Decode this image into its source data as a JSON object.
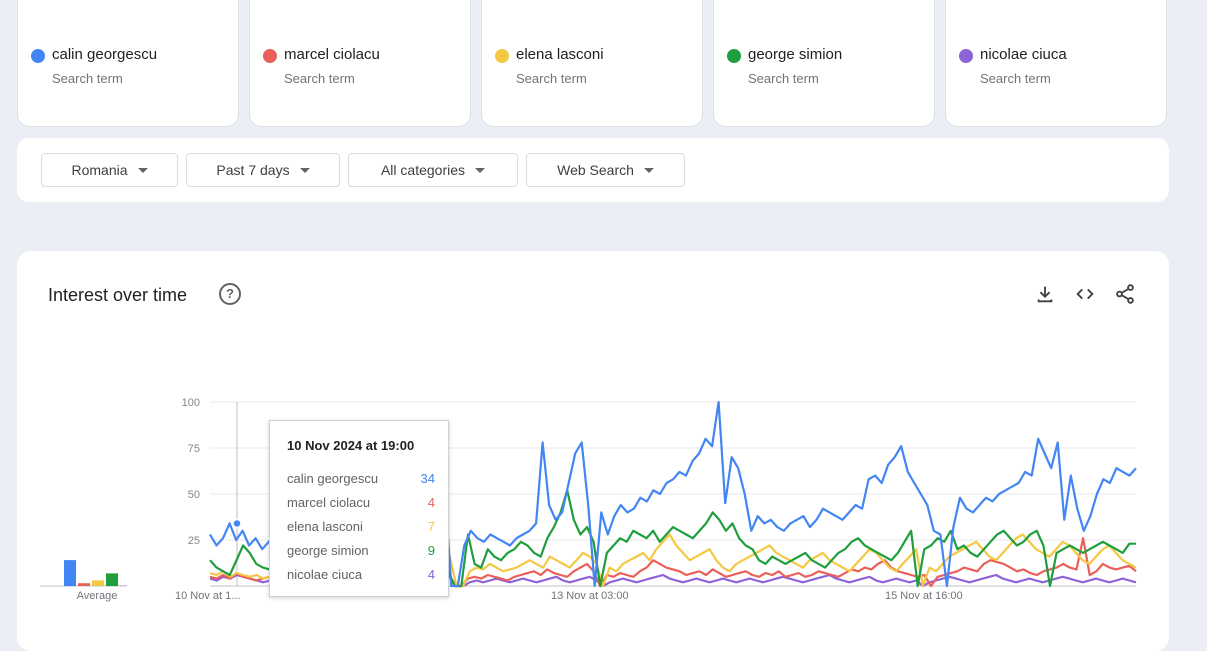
{
  "terms": [
    {
      "name": "calin georgescu",
      "sub": "Search term",
      "color": "#4285f4"
    },
    {
      "name": "marcel ciolacu",
      "sub": "Search term",
      "color": "#ea6059"
    },
    {
      "name": "elena lasconi",
      "sub": "Search term",
      "color": "#f4c842"
    },
    {
      "name": "george simion",
      "sub": "Search term",
      "color": "#1e9e3c"
    },
    {
      "name": "nicolae ciuca",
      "sub": "Search term",
      "color": "#8d63d6"
    }
  ],
  "filters": {
    "region": "Romania",
    "period": "Past 7 days",
    "category": "All categories",
    "search_type": "Web Search"
  },
  "panel": {
    "title": "Interest over time",
    "help": "?",
    "actions": [
      "download-icon",
      "embed-icon",
      "share-icon"
    ]
  },
  "average_chart": {
    "label": "Average",
    "values": [
      37,
      4,
      8,
      18,
      0.5
    ]
  },
  "chart_data": {
    "type": "line",
    "ylim": [
      0,
      100
    ],
    "yticks": [
      "100",
      "75",
      "50",
      "25"
    ],
    "xticks": [
      "10 Nov at 1...",
      "13 Nov at 03:00",
      "15 Nov at 16:00"
    ],
    "series": [
      {
        "name": "calin georgescu",
        "color": "#4285f4",
        "values": [
          28,
          22,
          26,
          34,
          25,
          30,
          22,
          26,
          20,
          24,
          28,
          26,
          30,
          34,
          38,
          32,
          36,
          26,
          28,
          22,
          20,
          22,
          24,
          22,
          26,
          30,
          28,
          24,
          30,
          34,
          36,
          40,
          38,
          36,
          40,
          48,
          53,
          0,
          0,
          22,
          30,
          26,
          24,
          28,
          26,
          24,
          22,
          26,
          28,
          30,
          34,
          78,
          44,
          36,
          40,
          56,
          72,
          78,
          44,
          0,
          40,
          28,
          38,
          44,
          40,
          42,
          48,
          46,
          52,
          50,
          56,
          58,
          62,
          60,
          68,
          72,
          80,
          76,
          100,
          45,
          70,
          64,
          50,
          30,
          38,
          34,
          36,
          32,
          30,
          34,
          36,
          38,
          32,
          36,
          42,
          40,
          38,
          36,
          40,
          44,
          42,
          58,
          60,
          56,
          66,
          70,
          76,
          62,
          56,
          50,
          44,
          30,
          28,
          0,
          32,
          48,
          42,
          40,
          44,
          48,
          46,
          50,
          52,
          54,
          56,
          62,
          60,
          80,
          72,
          64,
          78,
          36,
          60,
          42,
          30,
          38,
          50,
          58,
          56,
          64,
          62,
          60,
          64
        ]
      },
      {
        "name": "marcel ciolacu",
        "color": "#ea6059",
        "values": [
          5,
          4,
          6,
          4,
          7,
          5,
          4,
          3,
          4,
          5,
          4,
          6,
          5,
          4,
          3,
          5,
          4,
          6,
          5,
          4,
          3,
          4,
          5,
          4,
          6,
          5,
          4,
          5,
          6,
          5,
          4,
          3,
          5,
          4,
          6,
          5,
          8,
          0,
          0,
          4,
          5,
          4,
          6,
          5,
          4,
          3,
          5,
          6,
          7,
          8,
          6,
          9,
          7,
          6,
          5,
          8,
          10,
          12,
          8,
          0,
          6,
          5,
          7,
          6,
          5,
          8,
          10,
          14,
          12,
          10,
          9,
          8,
          6,
          7,
          8,
          6,
          9,
          7,
          5,
          6,
          7,
          8,
          6,
          5,
          7,
          6,
          8,
          5,
          6,
          7,
          5,
          6,
          8,
          7,
          6,
          5,
          7,
          9,
          8,
          10,
          9,
          12,
          14,
          10,
          8,
          7,
          6,
          5,
          6,
          0,
          5,
          6,
          7,
          8,
          10,
          9,
          8,
          12,
          14,
          13,
          12,
          10,
          8,
          9,
          7,
          6,
          8,
          9,
          10,
          12,
          10,
          9,
          26,
          6,
          8,
          12,
          10,
          9,
          10,
          11,
          8
        ]
      },
      {
        "name": "elena lasconi",
        "color": "#f4c842",
        "values": [
          7,
          6,
          8,
          5,
          7,
          6,
          5,
          6,
          4,
          5,
          6,
          7,
          8,
          6,
          5,
          7,
          6,
          8,
          9,
          7,
          6,
          5,
          7,
          8,
          10,
          9,
          8,
          12,
          14,
          16,
          18,
          15,
          20,
          18,
          16,
          14,
          16,
          0,
          0,
          8,
          10,
          9,
          12,
          10,
          8,
          9,
          10,
          12,
          14,
          12,
          10,
          16,
          14,
          12,
          10,
          14,
          18,
          16,
          12,
          0,
          10,
          8,
          12,
          14,
          16,
          18,
          14,
          20,
          24,
          28,
          22,
          18,
          14,
          16,
          18,
          20,
          14,
          10,
          8,
          12,
          14,
          16,
          18,
          20,
          22,
          18,
          16,
          14,
          12,
          10,
          14,
          16,
          18,
          14,
          12,
          10,
          8,
          12,
          16,
          20,
          18,
          14,
          10,
          8,
          12,
          16,
          20,
          0,
          10,
          8,
          12,
          16,
          18,
          20,
          22,
          24,
          20,
          16,
          14,
          18,
          22,
          26,
          28,
          24,
          20,
          18,
          16,
          20,
          24,
          22,
          18,
          14,
          12,
          16,
          20,
          22,
          18,
          14,
          12,
          10
        ]
      },
      {
        "name": "george simion",
        "color": "#1e9e3c",
        "values": [
          14,
          10,
          8,
          6,
          14,
          22,
          18,
          12,
          10,
          9,
          8,
          10,
          12,
          14,
          13,
          12,
          10,
          9,
          8,
          10,
          12,
          14,
          16,
          18,
          20,
          22,
          24,
          26,
          28,
          22,
          20,
          18,
          16,
          14,
          12,
          10,
          8,
          0,
          0,
          28,
          12,
          10,
          20,
          16,
          14,
          18,
          20,
          24,
          22,
          18,
          16,
          26,
          32,
          40,
          52,
          36,
          28,
          32,
          24,
          0,
          18,
          22,
          26,
          24,
          30,
          28,
          26,
          30,
          24,
          28,
          32,
          30,
          28,
          26,
          30,
          34,
          40,
          36,
          30,
          34,
          26,
          22,
          20,
          14,
          12,
          16,
          14,
          12,
          14,
          16,
          18,
          14,
          12,
          10,
          14,
          18,
          20,
          24,
          26,
          22,
          20,
          18,
          16,
          14,
          18,
          24,
          30,
          0,
          20,
          22,
          26,
          24,
          30,
          20,
          22,
          18,
          16,
          20,
          24,
          28,
          30,
          26,
          22,
          24,
          28,
          30,
          22,
          0,
          18,
          20,
          22,
          20,
          18,
          20,
          22,
          24,
          22,
          20,
          18,
          23,
          23
        ]
      },
      {
        "name": "nicolae ciuca",
        "color": "#8d63d6",
        "values": [
          4,
          3,
          5,
          4,
          6,
          5,
          4,
          3,
          2,
          3,
          4,
          3,
          2,
          3,
          4,
          3,
          2,
          3,
          2,
          3,
          4,
          3,
          2,
          3,
          4,
          3,
          2,
          3,
          4,
          5,
          6,
          4,
          3,
          2,
          3,
          4,
          5,
          0,
          0,
          2,
          3,
          2,
          3,
          4,
          3,
          2,
          3,
          4,
          3,
          2,
          3,
          4,
          5,
          3,
          2,
          3,
          4,
          5,
          3,
          0,
          2,
          3,
          4,
          3,
          2,
          3,
          4,
          5,
          6,
          4,
          3,
          2,
          3,
          4,
          3,
          2,
          3,
          4,
          3,
          2,
          3,
          4,
          3,
          2,
          3,
          4,
          5,
          4,
          3,
          2,
          3,
          4,
          5,
          6,
          4,
          3,
          2,
          3,
          4,
          5,
          3,
          2,
          3,
          4,
          3,
          2,
          3,
          0,
          2,
          3,
          4,
          5,
          4,
          3,
          2,
          3,
          4,
          5,
          6,
          4,
          3,
          2,
          3,
          4,
          3,
          2,
          3,
          4,
          5,
          4,
          3,
          2,
          3,
          4,
          3,
          2,
          3,
          4,
          3,
          2
        ]
      }
    ],
    "tooltip": {
      "date": "10 Nov 2024 at 19:00",
      "rows": [
        {
          "name": "calin georgescu",
          "value": "34",
          "color": "#4285f4"
        },
        {
          "name": "marcel ciolacu",
          "value": "4",
          "color": "#ea6059"
        },
        {
          "name": "elena lasconi",
          "value": "7",
          "color": "#f4c842"
        },
        {
          "name": "george simion",
          "value": "9",
          "color": "#1e9e3c"
        },
        {
          "name": "nicolae ciuca",
          "value": "4",
          "color": "#8d63d6"
        }
      ]
    }
  }
}
